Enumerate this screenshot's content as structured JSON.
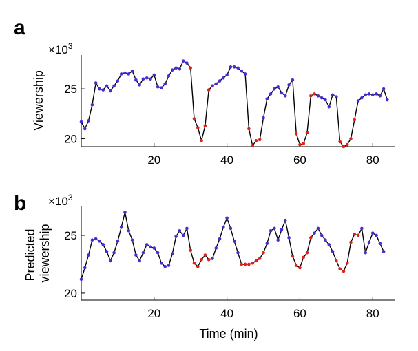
{
  "chart_data": [
    {
      "type": "line",
      "panel_label": "a",
      "ylabel": "Viewership",
      "multiplier": {
        "base": "×10",
        "exp": "3"
      },
      "xlim": [
        0,
        86
      ],
      "ylim": [
        19.2,
        28.4
      ],
      "xticks": [
        20,
        40,
        60,
        80
      ],
      "yticks": [
        20,
        25
      ],
      "colors": {
        "line": "#000000",
        "high": "#4a2ad6",
        "low": "#e0201b"
      },
      "points": [
        {
          "x": 0,
          "y": 21.7,
          "c": "high"
        },
        {
          "x": 1,
          "y": 21.0,
          "c": "high"
        },
        {
          "x": 2,
          "y": 21.8,
          "c": "high"
        },
        {
          "x": 3,
          "y": 23.4,
          "c": "high"
        },
        {
          "x": 4,
          "y": 25.6,
          "c": "high"
        },
        {
          "x": 5,
          "y": 25.0,
          "c": "high"
        },
        {
          "x": 6,
          "y": 24.9,
          "c": "high"
        },
        {
          "x": 7,
          "y": 25.3,
          "c": "high"
        },
        {
          "x": 8,
          "y": 24.8,
          "c": "high"
        },
        {
          "x": 9,
          "y": 25.3,
          "c": "high"
        },
        {
          "x": 10,
          "y": 25.8,
          "c": "high"
        },
        {
          "x": 11,
          "y": 26.5,
          "c": "high"
        },
        {
          "x": 12,
          "y": 26.6,
          "c": "high"
        },
        {
          "x": 13,
          "y": 26.5,
          "c": "high"
        },
        {
          "x": 14,
          "y": 26.8,
          "c": "high"
        },
        {
          "x": 15,
          "y": 25.9,
          "c": "high"
        },
        {
          "x": 16,
          "y": 25.4,
          "c": "high"
        },
        {
          "x": 17,
          "y": 26.0,
          "c": "high"
        },
        {
          "x": 18,
          "y": 26.1,
          "c": "high"
        },
        {
          "x": 19,
          "y": 26.0,
          "c": "high"
        },
        {
          "x": 20,
          "y": 26.4,
          "c": "high"
        },
        {
          "x": 21,
          "y": 25.2,
          "c": "high"
        },
        {
          "x": 22,
          "y": 25.1,
          "c": "high"
        },
        {
          "x": 23,
          "y": 25.5,
          "c": "high"
        },
        {
          "x": 24,
          "y": 26.3,
          "c": "high"
        },
        {
          "x": 25,
          "y": 26.9,
          "c": "high"
        },
        {
          "x": 26,
          "y": 27.1,
          "c": "high"
        },
        {
          "x": 27,
          "y": 27.0,
          "c": "high"
        },
        {
          "x": 28,
          "y": 27.8,
          "c": "high"
        },
        {
          "x": 29,
          "y": 27.6,
          "c": "high"
        },
        {
          "x": 30,
          "y": 27.1,
          "c": "low"
        },
        {
          "x": 31,
          "y": 22.0,
          "c": "low"
        },
        {
          "x": 32,
          "y": 21.1,
          "c": "low"
        },
        {
          "x": 33,
          "y": 19.8,
          "c": "low"
        },
        {
          "x": 34,
          "y": 21.3,
          "c": "low"
        },
        {
          "x": 35,
          "y": 24.9,
          "c": "low"
        },
        {
          "x": 36,
          "y": 25.3,
          "c": "high"
        },
        {
          "x": 37,
          "y": 25.5,
          "c": "high"
        },
        {
          "x": 38,
          "y": 25.8,
          "c": "high"
        },
        {
          "x": 39,
          "y": 26.1,
          "c": "high"
        },
        {
          "x": 40,
          "y": 26.4,
          "c": "high"
        },
        {
          "x": 41,
          "y": 27.2,
          "c": "high"
        },
        {
          "x": 42,
          "y": 27.2,
          "c": "high"
        },
        {
          "x": 43,
          "y": 27.1,
          "c": "high"
        },
        {
          "x": 44,
          "y": 26.8,
          "c": "high"
        },
        {
          "x": 45,
          "y": 26.5,
          "c": "high"
        },
        {
          "x": 46,
          "y": 21.0,
          "c": "low"
        },
        {
          "x": 47,
          "y": 19.3,
          "c": "low"
        },
        {
          "x": 48,
          "y": 19.8,
          "c": "low"
        },
        {
          "x": 49,
          "y": 19.9,
          "c": "low"
        },
        {
          "x": 50,
          "y": 22.1,
          "c": "high"
        },
        {
          "x": 51,
          "y": 24.0,
          "c": "high"
        },
        {
          "x": 52,
          "y": 24.5,
          "c": "high"
        },
        {
          "x": 53,
          "y": 25.0,
          "c": "high"
        },
        {
          "x": 54,
          "y": 25.2,
          "c": "high"
        },
        {
          "x": 55,
          "y": 24.6,
          "c": "high"
        },
        {
          "x": 56,
          "y": 24.3,
          "c": "high"
        },
        {
          "x": 57,
          "y": 25.4,
          "c": "high"
        },
        {
          "x": 58,
          "y": 25.9,
          "c": "high"
        },
        {
          "x": 59,
          "y": 20.5,
          "c": "low"
        },
        {
          "x": 60,
          "y": 19.4,
          "c": "low"
        },
        {
          "x": 61,
          "y": 19.5,
          "c": "low"
        },
        {
          "x": 62,
          "y": 20.6,
          "c": "low"
        },
        {
          "x": 63,
          "y": 24.3,
          "c": "low"
        },
        {
          "x": 64,
          "y": 24.5,
          "c": "low"
        },
        {
          "x": 65,
          "y": 24.3,
          "c": "high"
        },
        {
          "x": 66,
          "y": 24.1,
          "c": "high"
        },
        {
          "x": 67,
          "y": 23.9,
          "c": "high"
        },
        {
          "x": 68,
          "y": 23.2,
          "c": "high"
        },
        {
          "x": 69,
          "y": 24.4,
          "c": "high"
        },
        {
          "x": 70,
          "y": 24.2,
          "c": "high"
        },
        {
          "x": 71,
          "y": 19.7,
          "c": "low"
        },
        {
          "x": 72,
          "y": 19.2,
          "c": "low"
        },
        {
          "x": 73,
          "y": 19.4,
          "c": "low"
        },
        {
          "x": 74,
          "y": 20.0,
          "c": "low"
        },
        {
          "x": 75,
          "y": 21.9,
          "c": "low"
        },
        {
          "x": 76,
          "y": 23.8,
          "c": "high"
        },
        {
          "x": 77,
          "y": 24.1,
          "c": "high"
        },
        {
          "x": 78,
          "y": 24.4,
          "c": "high"
        },
        {
          "x": 79,
          "y": 24.5,
          "c": "high"
        },
        {
          "x": 80,
          "y": 24.4,
          "c": "high"
        },
        {
          "x": 81,
          "y": 24.5,
          "c": "high"
        },
        {
          "x": 82,
          "y": 24.3,
          "c": "high"
        },
        {
          "x": 83,
          "y": 25.0,
          "c": "high"
        },
        {
          "x": 84,
          "y": 23.9,
          "c": "high"
        }
      ]
    },
    {
      "type": "line",
      "panel_label": "b",
      "ylabel": "Predicted\nviewership",
      "xlabel": "Time (min)",
      "multiplier": {
        "base": "×10",
        "exp": "3"
      },
      "xlim": [
        0,
        86
      ],
      "ylim": [
        19.4,
        27.5
      ],
      "xticks": [
        20,
        40,
        60,
        80
      ],
      "yticks": [
        20,
        25
      ],
      "colors": {
        "line": "#000000",
        "high": "#4a2ad6",
        "low": "#e0201b"
      },
      "points": [
        {
          "x": 0,
          "y": 21.2,
          "c": "high"
        },
        {
          "x": 1,
          "y": 22.2,
          "c": "high"
        },
        {
          "x": 2,
          "y": 23.3,
          "c": "high"
        },
        {
          "x": 3,
          "y": 24.6,
          "c": "high"
        },
        {
          "x": 4,
          "y": 24.7,
          "c": "high"
        },
        {
          "x": 5,
          "y": 24.5,
          "c": "high"
        },
        {
          "x": 6,
          "y": 24.2,
          "c": "high"
        },
        {
          "x": 7,
          "y": 23.6,
          "c": "high"
        },
        {
          "x": 8,
          "y": 22.8,
          "c": "high"
        },
        {
          "x": 9,
          "y": 23.5,
          "c": "high"
        },
        {
          "x": 10,
          "y": 24.5,
          "c": "high"
        },
        {
          "x": 11,
          "y": 25.7,
          "c": "high"
        },
        {
          "x": 12,
          "y": 27.0,
          "c": "high"
        },
        {
          "x": 13,
          "y": 25.4,
          "c": "high"
        },
        {
          "x": 14,
          "y": 24.6,
          "c": "high"
        },
        {
          "x": 15,
          "y": 23.3,
          "c": "high"
        },
        {
          "x": 16,
          "y": 22.8,
          "c": "high"
        },
        {
          "x": 17,
          "y": 23.5,
          "c": "high"
        },
        {
          "x": 18,
          "y": 24.2,
          "c": "high"
        },
        {
          "x": 19,
          "y": 24.0,
          "c": "high"
        },
        {
          "x": 20,
          "y": 23.9,
          "c": "high"
        },
        {
          "x": 21,
          "y": 23.5,
          "c": "high"
        },
        {
          "x": 22,
          "y": 22.6,
          "c": "high"
        },
        {
          "x": 23,
          "y": 22.3,
          "c": "high"
        },
        {
          "x": 24,
          "y": 22.4,
          "c": "high"
        },
        {
          "x": 25,
          "y": 23.4,
          "c": "high"
        },
        {
          "x": 26,
          "y": 24.9,
          "c": "high"
        },
        {
          "x": 27,
          "y": 25.4,
          "c": "high"
        },
        {
          "x": 28,
          "y": 25.0,
          "c": "high"
        },
        {
          "x": 29,
          "y": 25.6,
          "c": "high"
        },
        {
          "x": 30,
          "y": 23.7,
          "c": "low"
        },
        {
          "x": 31,
          "y": 22.6,
          "c": "low"
        },
        {
          "x": 32,
          "y": 22.3,
          "c": "low"
        },
        {
          "x": 33,
          "y": 22.9,
          "c": "low"
        },
        {
          "x": 34,
          "y": 23.3,
          "c": "low"
        },
        {
          "x": 35,
          "y": 22.9,
          "c": "low"
        },
        {
          "x": 36,
          "y": 23.0,
          "c": "high"
        },
        {
          "x": 37,
          "y": 23.9,
          "c": "high"
        },
        {
          "x": 38,
          "y": 24.7,
          "c": "high"
        },
        {
          "x": 39,
          "y": 25.7,
          "c": "high"
        },
        {
          "x": 40,
          "y": 26.5,
          "c": "high"
        },
        {
          "x": 41,
          "y": 25.6,
          "c": "high"
        },
        {
          "x": 42,
          "y": 24.5,
          "c": "high"
        },
        {
          "x": 43,
          "y": 23.5,
          "c": "high"
        },
        {
          "x": 44,
          "y": 22.5,
          "c": "low"
        },
        {
          "x": 45,
          "y": 22.5,
          "c": "low"
        },
        {
          "x": 46,
          "y": 22.5,
          "c": "low"
        },
        {
          "x": 47,
          "y": 22.6,
          "c": "low"
        },
        {
          "x": 48,
          "y": 22.8,
          "c": "low"
        },
        {
          "x": 49,
          "y": 23.0,
          "c": "low"
        },
        {
          "x": 50,
          "y": 23.5,
          "c": "low"
        },
        {
          "x": 51,
          "y": 24.3,
          "c": "high"
        },
        {
          "x": 52,
          "y": 25.4,
          "c": "high"
        },
        {
          "x": 53,
          "y": 25.6,
          "c": "high"
        },
        {
          "x": 54,
          "y": 24.6,
          "c": "high"
        },
        {
          "x": 55,
          "y": 25.5,
          "c": "high"
        },
        {
          "x": 56,
          "y": 26.3,
          "c": "high"
        },
        {
          "x": 57,
          "y": 24.8,
          "c": "high"
        },
        {
          "x": 58,
          "y": 23.2,
          "c": "low"
        },
        {
          "x": 59,
          "y": 22.4,
          "c": "low"
        },
        {
          "x": 60,
          "y": 22.2,
          "c": "low"
        },
        {
          "x": 61,
          "y": 23.1,
          "c": "low"
        },
        {
          "x": 62,
          "y": 23.5,
          "c": "low"
        },
        {
          "x": 63,
          "y": 24.8,
          "c": "low"
        },
        {
          "x": 64,
          "y": 25.2,
          "c": "high"
        },
        {
          "x": 65,
          "y": 25.6,
          "c": "high"
        },
        {
          "x": 66,
          "y": 25.0,
          "c": "high"
        },
        {
          "x": 67,
          "y": 24.6,
          "c": "high"
        },
        {
          "x": 68,
          "y": 24.2,
          "c": "high"
        },
        {
          "x": 69,
          "y": 23.6,
          "c": "high"
        },
        {
          "x": 70,
          "y": 22.8,
          "c": "low"
        },
        {
          "x": 71,
          "y": 22.1,
          "c": "low"
        },
        {
          "x": 72,
          "y": 21.9,
          "c": "low"
        },
        {
          "x": 73,
          "y": 22.6,
          "c": "low"
        },
        {
          "x": 74,
          "y": 24.4,
          "c": "low"
        },
        {
          "x": 75,
          "y": 25.1,
          "c": "low"
        },
        {
          "x": 76,
          "y": 25.0,
          "c": "low"
        },
        {
          "x": 77,
          "y": 25.6,
          "c": "high"
        },
        {
          "x": 78,
          "y": 23.5,
          "c": "high"
        },
        {
          "x": 79,
          "y": 24.4,
          "c": "high"
        },
        {
          "x": 80,
          "y": 25.2,
          "c": "high"
        },
        {
          "x": 81,
          "y": 25.0,
          "c": "high"
        },
        {
          "x": 82,
          "y": 24.3,
          "c": "high"
        },
        {
          "x": 83,
          "y": 23.6,
          "c": "high"
        }
      ]
    }
  ]
}
